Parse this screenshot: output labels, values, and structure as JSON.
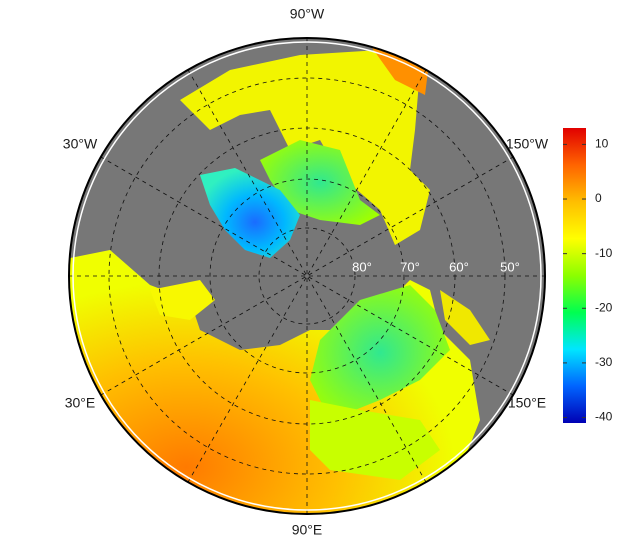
{
  "map": {
    "longitude_labels": [
      "90°W",
      "30°W",
      "150°W",
      "30°E",
      "150°E",
      "90°E"
    ],
    "latitude_labels": [
      "80°",
      "70°",
      "60°",
      "50°"
    ]
  },
  "colorbar": {
    "range": [
      -41,
      13
    ],
    "ticks": [
      10,
      0,
      -10,
      -20,
      -30,
      -40
    ],
    "colors": [
      "#0000b4",
      "#0064ff",
      "#00e6ff",
      "#00ff50",
      "#8cff00",
      "#ffff00",
      "#ffbe00",
      "#ff6400",
      "#e10000"
    ]
  }
}
